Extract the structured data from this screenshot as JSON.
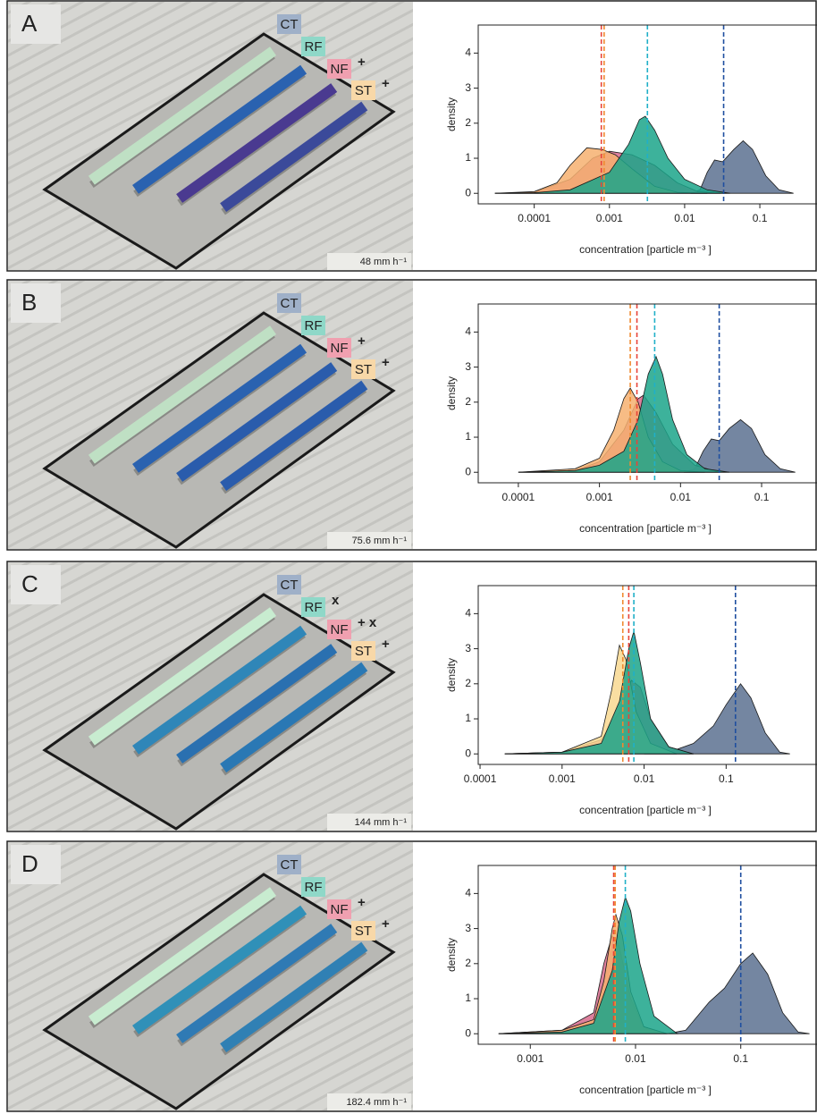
{
  "chart_data": [
    {
      "type": "density",
      "panel": "A",
      "rainfall": "48 mm h⁻¹",
      "xlabel": "concentration  [particle m⁻³ ]",
      "ylabel": "density",
      "xscale": "log",
      "xlim": [
        1.8e-05,
        0.56
      ],
      "ylim": [
        -0.3,
        4.8
      ],
      "xticks": [
        0.0001,
        0.001,
        0.01,
        0.1
      ],
      "yticks": [
        0,
        1,
        2,
        3,
        4
      ],
      "series": [
        {
          "name": "CT",
          "color": "#5c7190",
          "line_color": "#1f4fa0",
          "label_color": "#9fb0c8",
          "mean": 0.033,
          "x": [
            0.012,
            0.016,
            0.02,
            0.025,
            0.032,
            0.045,
            0.06,
            0.08,
            0.12,
            0.18,
            0.28
          ],
          "values": [
            0,
            0.1,
            0.6,
            0.95,
            0.9,
            1.25,
            1.5,
            1.25,
            0.5,
            0.1,
            0
          ]
        },
        {
          "name": "RF",
          "color": "#1ba58a",
          "line_color": "#20b0c8",
          "label_color": "#8fd8c8",
          "mean": 0.0032,
          "x": [
            3e-05,
            0.0001,
            0.0003,
            0.001,
            0.0018,
            0.0025,
            0.003,
            0.004,
            0.006,
            0.01,
            0.02,
            0.04
          ],
          "values": [
            0,
            0.02,
            0.1,
            0.6,
            1.4,
            2.1,
            2.2,
            1.8,
            1.0,
            0.4,
            0.1,
            0
          ]
        },
        {
          "name": "NF",
          "color": "#d86a8c",
          "line_color": "#e8443a",
          "label_color": "#f0a0b0",
          "mean": 0.00078,
          "marker": "+",
          "x": [
            3e-05,
            0.0001,
            0.0003,
            0.0006,
            0.001,
            0.002,
            0.004,
            0.008,
            0.015,
            0.03
          ],
          "values": [
            0,
            0.03,
            0.4,
            1.0,
            1.2,
            1.1,
            0.8,
            0.3,
            0.05,
            0
          ]
        },
        {
          "name": "ST",
          "color": "#f6b070",
          "line_color": "#f08a30",
          "label_color": "#f8d8a8",
          "mean": 0.00085,
          "marker": "+",
          "x": [
            3e-05,
            0.0001,
            0.0002,
            0.0003,
            0.0005,
            0.0008,
            0.0012,
            0.002,
            0.004,
            0.008,
            0.02
          ],
          "values": [
            0,
            0.05,
            0.3,
            0.8,
            1.3,
            1.25,
            1.1,
            0.7,
            0.2,
            0.03,
            0
          ]
        }
      ]
    },
    {
      "type": "density",
      "panel": "B",
      "rainfall": "75.6 mm h⁻¹",
      "xlabel": "concentration  [particle m⁻³ ]",
      "ylabel": "density",
      "xscale": "log",
      "xlim": [
        3.2e-05,
        0.47
      ],
      "ylim": [
        -0.3,
        4.8
      ],
      "xticks": [
        0.0001,
        0.001,
        0.01,
        0.1
      ],
      "yticks": [
        0,
        1,
        2,
        3,
        4
      ],
      "series": [
        {
          "name": "CT",
          "color": "#5c7190",
          "line_color": "#1f4fa0",
          "label_color": "#9fb0c8",
          "mean": 0.03,
          "x": [
            0.011,
            0.015,
            0.019,
            0.024,
            0.03,
            0.04,
            0.055,
            0.075,
            0.11,
            0.17,
            0.26
          ],
          "values": [
            0,
            0.1,
            0.6,
            0.95,
            0.9,
            1.25,
            1.5,
            1.25,
            0.5,
            0.1,
            0
          ]
        },
        {
          "name": "RF",
          "color": "#1ba58a",
          "line_color": "#20b0c8",
          "label_color": "#8fd8c8",
          "mean": 0.0048,
          "x": [
            0.0001,
            0.0005,
            0.001,
            0.002,
            0.003,
            0.004,
            0.005,
            0.006,
            0.008,
            0.012,
            0.02,
            0.04
          ],
          "values": [
            0,
            0.05,
            0.2,
            0.6,
            1.5,
            2.8,
            3.3,
            2.8,
            1.5,
            0.5,
            0.1,
            0
          ]
        },
        {
          "name": "NF",
          "color": "#d86a8c",
          "line_color": "#e8443a",
          "label_color": "#f0a0b0",
          "mean": 0.0029,
          "marker": "+",
          "x": [
            0.0001,
            0.0005,
            0.001,
            0.002,
            0.003,
            0.0035,
            0.005,
            0.008,
            0.015,
            0.03
          ],
          "values": [
            0,
            0.05,
            0.3,
            1.2,
            2.1,
            2.2,
            1.7,
            0.8,
            0.2,
            0
          ]
        },
        {
          "name": "ST",
          "color": "#f6b070",
          "line_color": "#f08a30",
          "label_color": "#f8d8a8",
          "mean": 0.0024,
          "marker": "+",
          "x": [
            0.0001,
            0.0005,
            0.001,
            0.0015,
            0.002,
            0.0024,
            0.003,
            0.004,
            0.006,
            0.01,
            0.02
          ],
          "values": [
            0,
            0.1,
            0.4,
            1.2,
            2.1,
            2.4,
            2.0,
            1.0,
            0.3,
            0.05,
            0
          ]
        }
      ]
    },
    {
      "type": "density",
      "panel": "C",
      "rainfall": "144 mm h⁻¹",
      "xlabel": "concentration  [particle m⁻³ ]",
      "ylabel": "density",
      "xscale": "log",
      "xlim": [
        9.5e-05,
        1.25
      ],
      "ylim": [
        -0.3,
        4.8
      ],
      "xticks": [
        0.0001,
        0.001,
        0.01,
        0.1
      ],
      "yticks": [
        0,
        1,
        2,
        3,
        4
      ],
      "series": [
        {
          "name": "CT",
          "color": "#5c7190",
          "line_color": "#1f4fa0",
          "label_color": "#9fb0c8",
          "mean": 0.13,
          "x": [
            0.01,
            0.02,
            0.04,
            0.07,
            0.1,
            0.15,
            0.2,
            0.3,
            0.45,
            0.6
          ],
          "values": [
            0,
            0.05,
            0.3,
            0.8,
            1.4,
            2.0,
            1.6,
            0.6,
            0.05,
            0
          ]
        },
        {
          "name": "RF",
          "color": "#1ba58a",
          "line_color": "#20b0c8",
          "label_color": "#8fd8c8",
          "mean": 0.0075,
          "marker": "x",
          "x": [
            0.0002,
            0.001,
            0.003,
            0.005,
            0.0065,
            0.0075,
            0.009,
            0.012,
            0.02,
            0.04
          ],
          "values": [
            0,
            0.05,
            0.3,
            1.5,
            3.0,
            3.5,
            2.6,
            1.0,
            0.2,
            0
          ]
        },
        {
          "name": "NF",
          "color": "#d86a8c",
          "line_color": "#e8443a",
          "label_color": "#f0a0b0",
          "mean": 0.0065,
          "marker": "+ x",
          "x": [
            0.0002,
            0.001,
            0.003,
            0.005,
            0.007,
            0.009,
            0.012,
            0.02,
            0.04
          ],
          "values": [
            0,
            0.05,
            0.4,
            1.2,
            2.1,
            1.9,
            1.0,
            0.2,
            0
          ]
        },
        {
          "name": "ST",
          "color": "#f8d890",
          "line_color": "#f08a30",
          "label_color": "#f8d8a8",
          "mean": 0.0055,
          "marker": "+",
          "x": [
            0.0002,
            0.001,
            0.003,
            0.004,
            0.005,
            0.006,
            0.008,
            0.012,
            0.025
          ],
          "values": [
            0,
            0.05,
            0.5,
            1.8,
            3.1,
            2.7,
            1.2,
            0.3,
            0
          ]
        }
      ]
    },
    {
      "type": "density",
      "panel": "D",
      "rainfall": "182.4 mm h⁻¹",
      "xlabel": "concentration  [particle m⁻³ ]",
      "ylabel": "density",
      "xscale": "log",
      "xlim": [
        0.00032,
        0.52
      ],
      "ylim": [
        -0.3,
        4.8
      ],
      "xticks": [
        0.001,
        0.01,
        0.1
      ],
      "yticks": [
        0,
        1,
        2,
        3,
        4
      ],
      "series": [
        {
          "name": "CT",
          "color": "#5c7190",
          "line_color": "#1f4fa0",
          "label_color": "#9fb0c8",
          "mean": 0.1,
          "x": [
            0.02,
            0.03,
            0.05,
            0.07,
            0.1,
            0.13,
            0.18,
            0.25,
            0.35,
            0.45
          ],
          "values": [
            0,
            0.1,
            0.9,
            1.3,
            2.0,
            2.3,
            1.7,
            0.6,
            0.05,
            0
          ]
        },
        {
          "name": "RF",
          "color": "#1ba58a",
          "line_color": "#20b0c8",
          "label_color": "#8fd8c8",
          "mean": 0.008,
          "x": [
            0.0005,
            0.002,
            0.004,
            0.006,
            0.007,
            0.008,
            0.009,
            0.011,
            0.015,
            0.025
          ],
          "values": [
            0,
            0.05,
            0.3,
            1.8,
            3.2,
            3.9,
            3.5,
            2.0,
            0.5,
            0
          ]
        },
        {
          "name": "NF",
          "color": "#d86a8c",
          "line_color": "#e8443a",
          "label_color": "#f0a0b0",
          "mean": 0.0062,
          "marker": "+",
          "x": [
            0.0005,
            0.002,
            0.004,
            0.005,
            0.006,
            0.007,
            0.009,
            0.012,
            0.02
          ],
          "values": [
            0,
            0.1,
            0.6,
            2.0,
            2.8,
            2.5,
            1.0,
            0.2,
            0
          ]
        },
        {
          "name": "ST",
          "color": "#f6b070",
          "line_color": "#f08a30",
          "label_color": "#f8d8a8",
          "mean": 0.0064,
          "marker": "+",
          "x": [
            0.0005,
            0.002,
            0.004,
            0.005,
            0.006,
            0.0065,
            0.0075,
            0.009,
            0.012,
            0.02
          ],
          "values": [
            0,
            0.1,
            0.4,
            1.5,
            3.0,
            3.4,
            2.8,
            1.2,
            0.2,
            0
          ]
        }
      ]
    }
  ]
}
